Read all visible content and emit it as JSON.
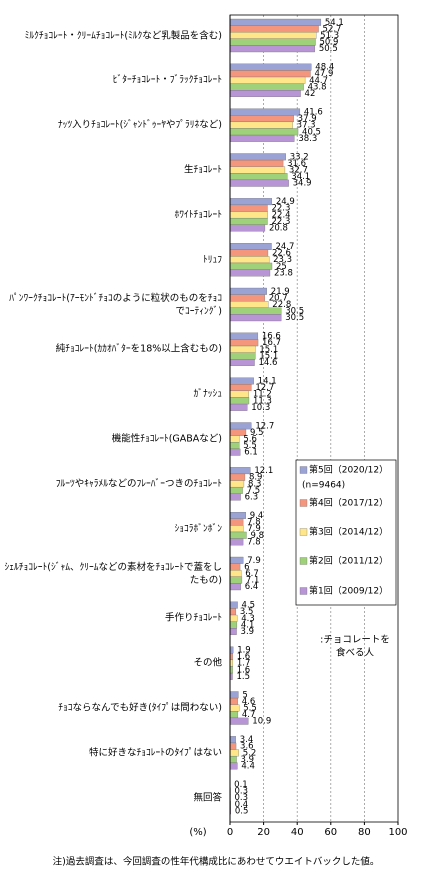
{
  "chart_data": {
    "type": "bar",
    "orientation": "horizontal",
    "categories": [
      "ﾐﾙｸﾁｮｺﾚｰﾄ・ｸﾘｰﾑﾁｮｺﾚｰﾄ(ﾐﾙｸなど乳製品を含む)",
      "ﾋﾞﾀｰﾁｮｺﾚｰﾄ・ﾌﾞﾗｯｸﾁｮｺﾚｰﾄ",
      "ﾅｯﾂ入りﾁｮｺﾚｰﾄ(ｼﾞｬﾝﾄﾞｩｰﾔやﾌﾟﾗﾘﾈなど)",
      "生ﾁｮｺﾚｰﾄ",
      "ﾎﾜｲﾄﾁｮｺﾚｰﾄ",
      "ﾄﾘｭﾌ",
      "ﾊﾟﾝﾜｰｸﾁｮｺﾚｰﾄ(ｱｰﾓﾝﾄﾞﾁｮｺのように粒状のものをﾁｮｺでｺｰﾃｨﾝｸﾞ)",
      "純ﾁｮｺﾚｰﾄ(ｶｶｵﾊﾞﾀｰを18%以上含むもの)",
      "ｶﾞﾅｯｼｭ",
      "機能性ﾁｮｺﾚｰﾄ(GABAなど)",
      "ﾌﾙｰﾂやｷｬﾗﾒﾙなどのﾌﾚｰﾊﾞｰつきのﾁｮｺﾚｰﾄ",
      "ｼｮｺﾗﾎﾞﾝﾎﾞﾝ",
      "ｼｪﾙﾁｮｺﾚｰﾄ(ｼﾞｬﾑ、ｸﾘｰﾑなどの素材をﾁｮｺﾚｰﾄで蓋をしたもの)",
      "手作りﾁｮｺﾚｰﾄ",
      "その他",
      "ﾁｮｺならなんでも好き(ﾀｲﾌﾟは問わない)",
      "特に好きなﾁｮｺﾚｰﾄのﾀｲﾌﾟはない",
      "無回答"
    ],
    "series": [
      {
        "name": "第5回（2020/12）",
        "color": "#9aa3d4",
        "values": [
          54.1,
          48.4,
          41.6,
          33.2,
          24.9,
          24.7,
          21.9,
          16.6,
          14.1,
          12.7,
          12.1,
          9.4,
          7.9,
          4.5,
          1.9,
          5.0,
          3.4,
          0.1
        ]
      },
      {
        "name": "第4回（2017/12）",
        "color": "#f4967e",
        "values": [
          52.7,
          47.9,
          37.9,
          31.6,
          22.3,
          22.6,
          20.7,
          16.7,
          12.7,
          9.5,
          8.9,
          7.8,
          6.0,
          3.5,
          1.6,
          4.6,
          3.6,
          0.3
        ]
      },
      {
        "name": "第3回（2014/12）",
        "color": "#ffe68a",
        "values": [
          51.3,
          44.7,
          37.3,
          32.7,
          22.4,
          23.3,
          22.8,
          15.1,
          11.2,
          5.6,
          8.3,
          7.9,
          6.7,
          4.3,
          1.7,
          5.5,
          5.2,
          0.3
        ]
      },
      {
        "name": "第2回（2011/12）",
        "color": "#9fd07a",
        "values": [
          50.9,
          43.8,
          40.5,
          34.1,
          22.3,
          25.0,
          30.5,
          15.1,
          11.3,
          5.5,
          7.5,
          9.8,
          7.1,
          4.1,
          1.6,
          4.7,
          3.9,
          0.4
        ]
      },
      {
        "name": "第1回（2009/12）",
        "color": "#b896d6",
        "values": [
          50.5,
          42.0,
          38.3,
          34.9,
          20.8,
          23.8,
          30.5,
          14.6,
          10.3,
          6.1,
          6.3,
          7.8,
          6.4,
          3.9,
          1.5,
          10.9,
          4.4,
          0.5
        ]
      }
    ],
    "legend_n": "(n=9464)",
    "legend_note": [
      ":チョコレートを",
      "食べる人"
    ],
    "xlim": [
      0,
      100
    ],
    "xticks": [
      0,
      20,
      40,
      60,
      80,
      100
    ],
    "xlabel": "(%)",
    "grid": true,
    "footnote": "注)過去調査は、今回調査の性年代構成比にあわせてウエイトバックした値。"
  }
}
